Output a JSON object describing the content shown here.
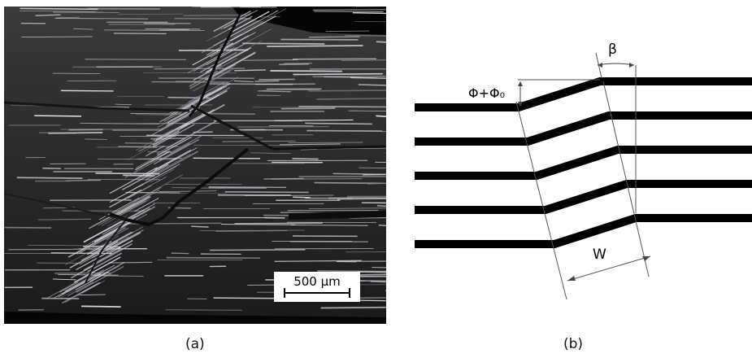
{
  "panel_a": {
    "caption": "(a)",
    "scale_bar_label": "500 µm"
  },
  "panel_b": {
    "caption": "(b)",
    "labels": {
      "beta": "β",
      "phi": "Φ+Φ₀",
      "width": "W"
    },
    "fibre_layer_count": 5
  }
}
